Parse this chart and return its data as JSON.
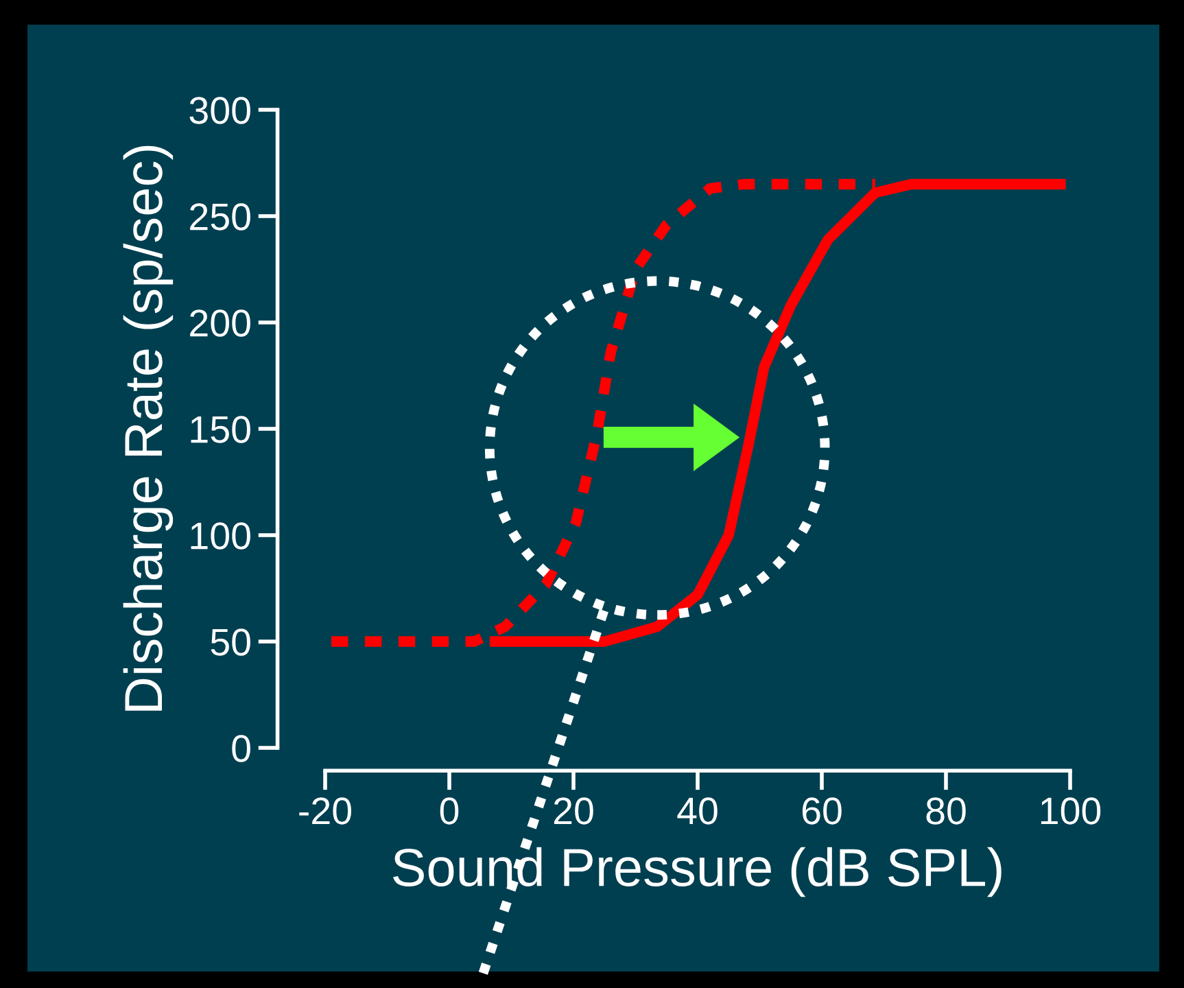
{
  "chart_data": {
    "type": "line",
    "xlabel": "Sound Pressure (dB SPL)",
    "ylabel": "Discharge Rate (sp/sec)",
    "xlim": [
      -20,
      100
    ],
    "ylim": [
      0,
      300
    ],
    "xticks": [
      -20,
      0,
      20,
      40,
      60,
      80,
      100
    ],
    "yticks": [
      0,
      50,
      100,
      150,
      200,
      250,
      300
    ],
    "series": [
      {
        "color": "#ff0000",
        "line_style": "dotted",
        "x": [
          -19,
          4,
          9,
          15.6,
          20.4,
          23.8,
          26,
          30,
          35,
          42,
          47.4,
          68.6
        ],
        "values": [
          50,
          50,
          57,
          77,
          106,
          148,
          186,
          225,
          246,
          263,
          265,
          265
        ]
      },
      {
        "color": "#ff0000",
        "line_style": "solid",
        "x": [
          6.5,
          25,
          33.5,
          40,
          45,
          48.3,
          50.7,
          55,
          61,
          68.6,
          74.4,
          99.3
        ],
        "values": [
          50,
          50,
          57,
          72,
          100,
          144,
          179,
          208,
          239,
          261,
          265,
          265
        ]
      }
    ]
  }
}
